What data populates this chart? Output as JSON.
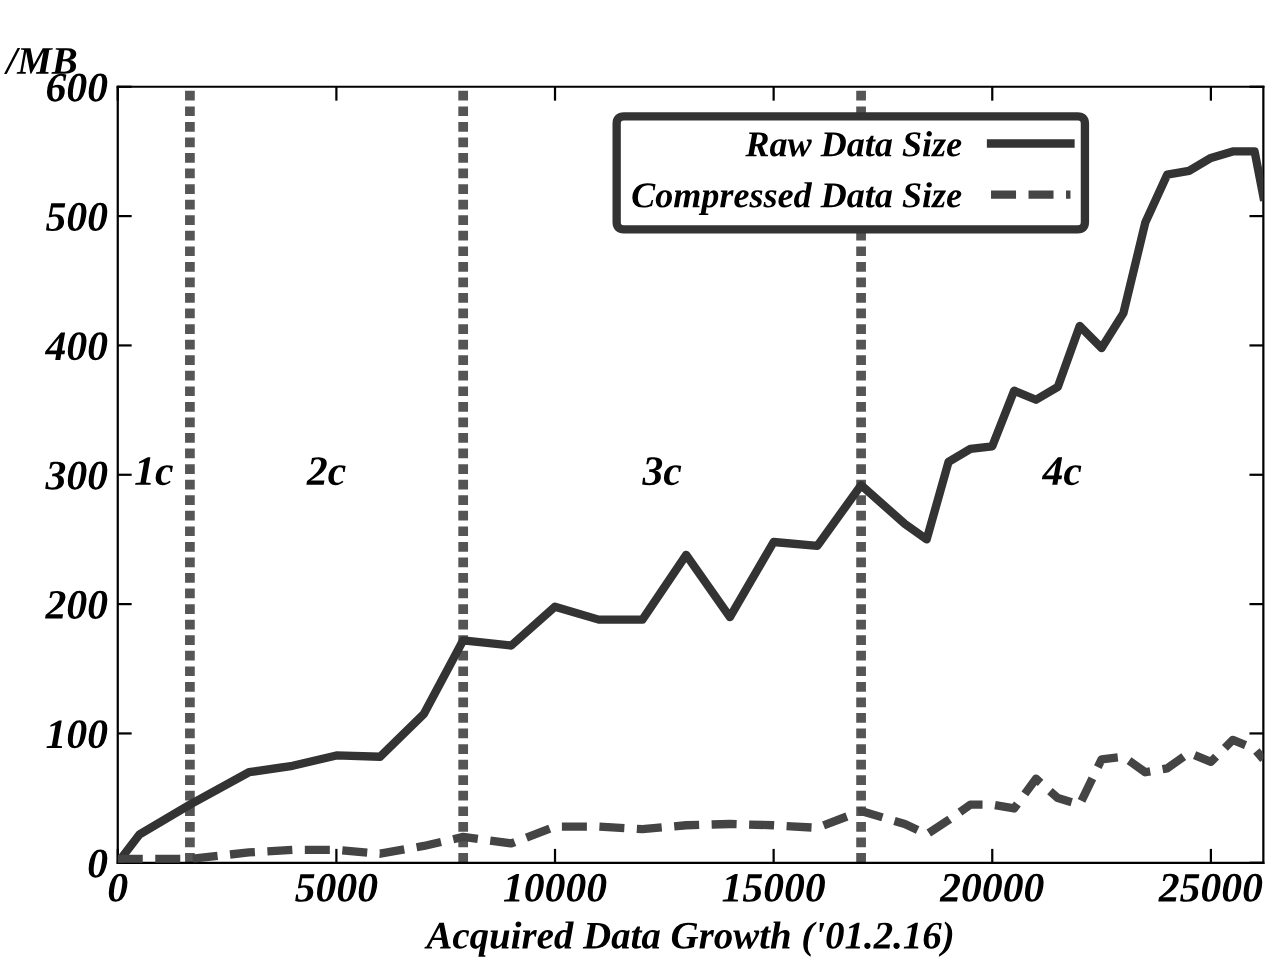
{
  "chart_data": {
    "type": "line",
    "xlabel": "Acquired Data Growth ('01.2.16)",
    "ylabel": "/MB",
    "xlim": [
      0,
      26200
    ],
    "ylim": [
      0,
      600
    ],
    "xticks": [
      0,
      5000,
      10000,
      15000,
      20000,
      25000
    ],
    "yticks": [
      0,
      100,
      200,
      300,
      400,
      500,
      600
    ],
    "grid": false,
    "legend": "top right",
    "series": [
      {
        "name": "Raw Data Size",
        "color": "#333333",
        "line_style": "solid",
        "x": [
          0,
          500,
          1650,
          3000,
          4000,
          5000,
          6000,
          7000,
          7900,
          9000,
          10000,
          11000,
          12000,
          13000,
          14000,
          15000,
          16000,
          17000,
          18000,
          18500,
          19000,
          19500,
          20000,
          20500,
          21000,
          21500,
          22000,
          22500,
          23000,
          23500,
          24000,
          24500,
          25000,
          25500,
          26000,
          26200
        ],
        "values": [
          0,
          22,
          45,
          70,
          75,
          83,
          82,
          115,
          172,
          168,
          198,
          188,
          188,
          238,
          190,
          248,
          245,
          292,
          262,
          250,
          310,
          320,
          322,
          365,
          358,
          368,
          415,
          398,
          425,
          495,
          532,
          535,
          545,
          550,
          550,
          515
        ]
      },
      {
        "name": "Compressed Data Size",
        "color": "#444444",
        "line_style": "dashed",
        "x": [
          0,
          1650,
          3000,
          4000,
          5000,
          6000,
          7000,
          7900,
          9000,
          10000,
          11000,
          12000,
          13000,
          14000,
          15000,
          16000,
          17000,
          18000,
          18500,
          19000,
          19500,
          20000,
          20500,
          21000,
          21500,
          22000,
          22500,
          23000,
          23500,
          24000,
          24500,
          25000,
          25500,
          26000,
          26200
        ],
        "values": [
          3,
          3,
          8,
          10,
          10,
          7,
          13,
          20,
          15,
          28,
          28,
          26,
          29,
          30,
          29,
          27,
          40,
          30,
          22,
          33,
          45,
          45,
          42,
          65,
          50,
          45,
          80,
          82,
          70,
          73,
          85,
          78,
          95,
          88,
          80
        ]
      }
    ],
    "ref_lines": [
      {
        "axis": "x",
        "value": 1650,
        "color": "#555555",
        "line_style": "dotted"
      },
      {
        "axis": "x",
        "value": 7900,
        "color": "#555555",
        "line_style": "dotted"
      },
      {
        "axis": "x",
        "value": 17000,
        "color": "#555555",
        "line_style": "dotted"
      }
    ],
    "annotations": [
      "1c",
      "2c",
      "3c",
      "4c"
    ]
  }
}
